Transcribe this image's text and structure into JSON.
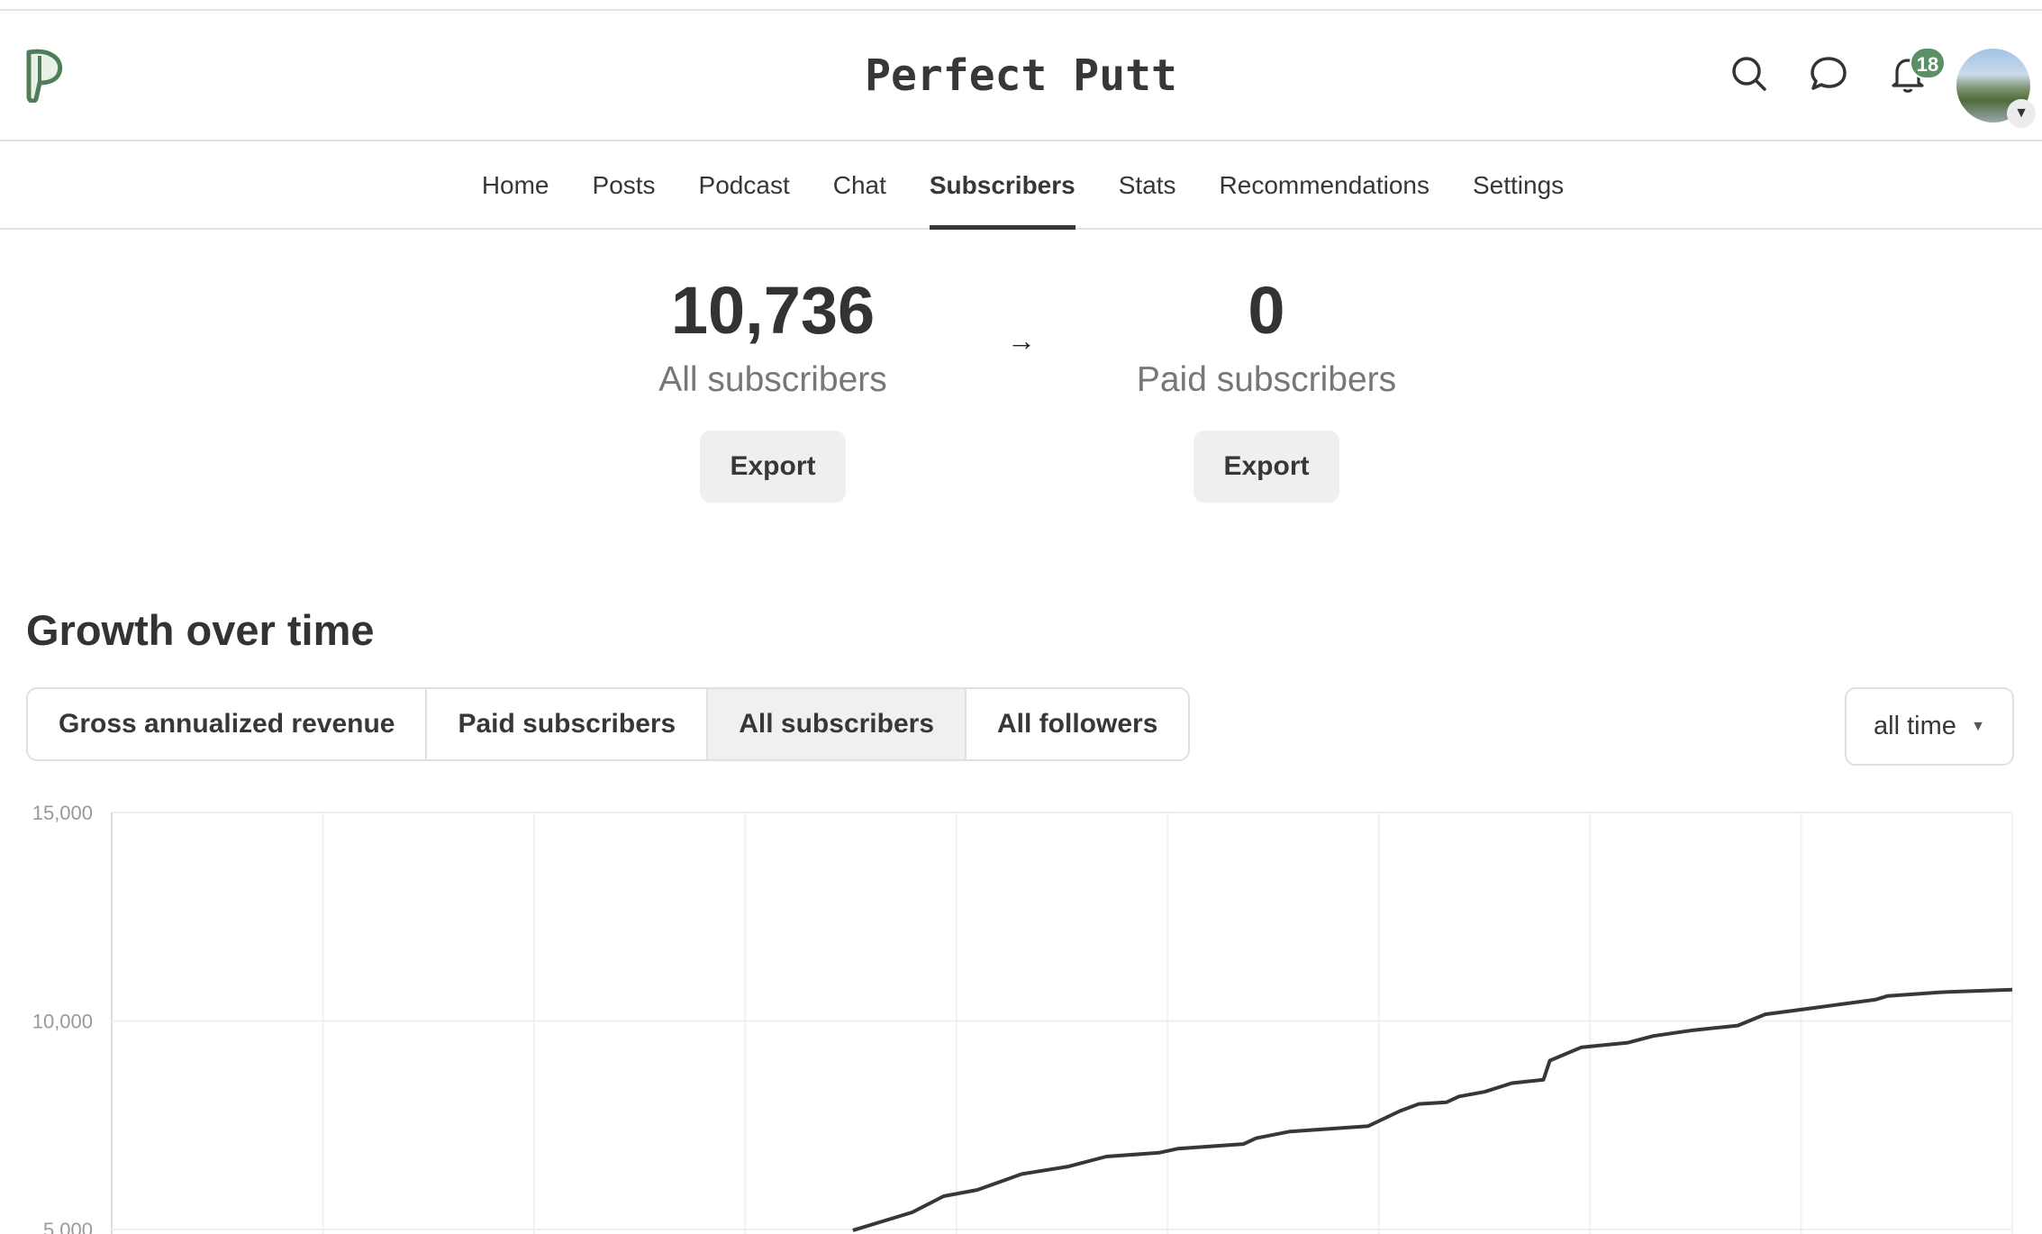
{
  "header": {
    "title": "Perfect Putt",
    "notifications_count": "18"
  },
  "nav": {
    "items": [
      {
        "label": "Home"
      },
      {
        "label": "Posts"
      },
      {
        "label": "Podcast"
      },
      {
        "label": "Chat"
      },
      {
        "label": "Subscribers",
        "active": true
      },
      {
        "label": "Stats"
      },
      {
        "label": "Recommendations"
      },
      {
        "label": "Settings"
      }
    ]
  },
  "stats": {
    "all": {
      "value": "10,736",
      "label": "All subscribers",
      "export_label": "Export"
    },
    "paid": {
      "value": "0",
      "label": "Paid subscribers",
      "export_label": "Export"
    }
  },
  "growth": {
    "title": "Growth over time",
    "tabs": [
      {
        "label": "Gross annualized revenue"
      },
      {
        "label": "Paid subscribers"
      },
      {
        "label": "All subscribers",
        "selected": true
      },
      {
        "label": "All followers"
      }
    ],
    "range": "all time"
  },
  "colors": {
    "accent": "#5b8f66",
    "line": "#363737"
  },
  "chart_data": {
    "type": "line",
    "title": "",
    "xlabel": "",
    "ylabel": "",
    "y_ticks": [
      "5,000",
      "10,000",
      "15,000"
    ],
    "ylim": [
      5000,
      15000
    ],
    "grid": true,
    "x_gridline_count": 10,
    "series": [
      {
        "x": [
          3.51,
          3.79,
          3.94,
          4.1,
          4.31,
          4.53,
          4.71,
          4.96,
          5.05,
          5.36,
          5.42,
          5.58,
          5.95,
          6.1,
          6.19,
          6.32,
          6.38,
          6.5,
          6.63,
          6.78,
          6.81,
          6.96,
          7.18,
          7.3,
          7.49,
          7.7,
          7.83,
          8.04,
          8.35,
          8.41,
          8.66,
          9.0
        ],
        "y": [
          4980,
          5410,
          5800,
          5950,
          6330,
          6510,
          6750,
          6840,
          6940,
          7050,
          7190,
          7350,
          7480,
          7840,
          8010,
          8050,
          8190,
          8300,
          8510,
          8590,
          9050,
          9370,
          9480,
          9640,
          9780,
          9890,
          10160,
          10300,
          10510,
          10600,
          10690,
          10750
        ]
      }
    ]
  }
}
